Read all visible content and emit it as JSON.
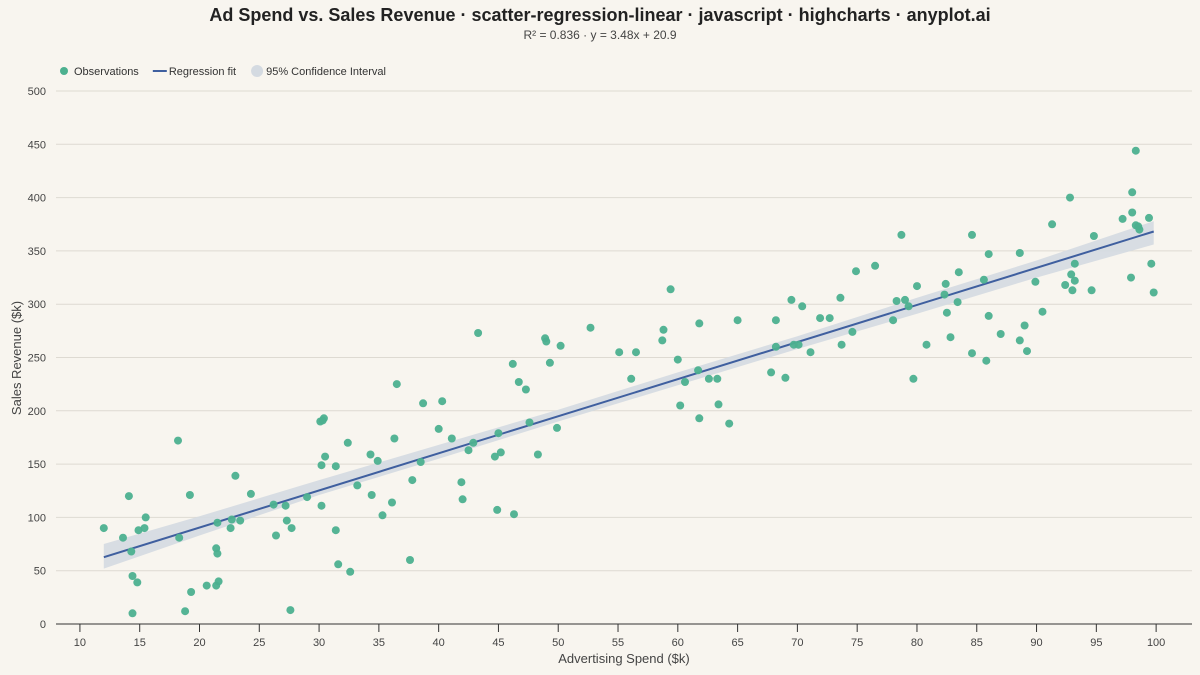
{
  "chart_data": {
    "type": "scatter",
    "title": "Ad Spend vs. Sales Revenue · scatter-regression-linear · javascript · highcharts · anyplot.ai",
    "subtitle": "R² = 0.836 · y = 3.48x + 20.9",
    "xlabel": "Advertising Spend ($k)",
    "ylabel": "Sales Revenue ($k)",
    "xlim": [
      8,
      103
    ],
    "ylim": [
      0,
      500
    ],
    "x_ticks": [
      10,
      15,
      20,
      25,
      30,
      35,
      40,
      45,
      50,
      55,
      60,
      65,
      70,
      75,
      80,
      85,
      90,
      95,
      100
    ],
    "y_ticks": [
      0,
      50,
      100,
      150,
      200,
      250,
      300,
      350,
      400,
      450,
      500
    ],
    "grid": "horizontal",
    "legend_position": "top-left",
    "colors": {
      "points": "#4cb08f",
      "line": "#3f5f9f",
      "band": "#d4dae1",
      "grid": "#dedad2",
      "axis": "#333333",
      "text": "#222222",
      "muted": "#444444"
    },
    "legend": [
      {
        "name": "Observations",
        "symbol": "circle"
      },
      {
        "name": "Regression fit",
        "symbol": "line"
      },
      {
        "name": "95% Confidence Interval",
        "symbol": "band"
      }
    ],
    "regression": {
      "slope": 3.48,
      "intercept": 20.9,
      "x_range": [
        12,
        99.8
      ]
    },
    "confidence_band": [
      {
        "x": 12,
        "lo": 52,
        "hi": 75
      },
      {
        "x": 20,
        "lo": 83,
        "hi": 101
      },
      {
        "x": 30,
        "lo": 121,
        "hi": 135
      },
      {
        "x": 40,
        "lo": 155,
        "hi": 168
      },
      {
        "x": 50,
        "lo": 190,
        "hi": 201
      },
      {
        "x": 60,
        "lo": 224,
        "hi": 236
      },
      {
        "x": 70,
        "lo": 258,
        "hi": 270
      },
      {
        "x": 80,
        "lo": 291,
        "hi": 306
      },
      {
        "x": 90,
        "lo": 325,
        "hi": 341
      },
      {
        "x": 99.8,
        "lo": 356,
        "hi": 378
      }
    ],
    "series": [
      {
        "name": "Observations",
        "points": [
          [
            12,
            90
          ],
          [
            13.6,
            81
          ],
          [
            14.1,
            120
          ],
          [
            14.3,
            68
          ],
          [
            14.4,
            45
          ],
          [
            14.4,
            10
          ],
          [
            14.8,
            39
          ],
          [
            14.9,
            88
          ],
          [
            15.4,
            90
          ],
          [
            15.5,
            100
          ],
          [
            18.2,
            172
          ],
          [
            18.3,
            81
          ],
          [
            18.8,
            12
          ],
          [
            19.2,
            121
          ],
          [
            19.3,
            30
          ],
          [
            20.6,
            36
          ],
          [
            21.4,
            36
          ],
          [
            21.4,
            71
          ],
          [
            21.5,
            66
          ],
          [
            21.6,
            40
          ],
          [
            21.5,
            95
          ],
          [
            22.6,
            90
          ],
          [
            22.7,
            98
          ],
          [
            23.0,
            139
          ],
          [
            23.4,
            97
          ],
          [
            24.3,
            122
          ],
          [
            26.2,
            112
          ],
          [
            26.4,
            83
          ],
          [
            27.2,
            111
          ],
          [
            27.3,
            97
          ],
          [
            27.6,
            13
          ],
          [
            27.7,
            90
          ],
          [
            29.0,
            119
          ],
          [
            30.1,
            190
          ],
          [
            30.4,
            193
          ],
          [
            30.3,
            191
          ],
          [
            30.2,
            149
          ],
          [
            30.2,
            111
          ],
          [
            30.5,
            157
          ],
          [
            31.4,
            148
          ],
          [
            31.4,
            88
          ],
          [
            31.6,
            56
          ],
          [
            32.4,
            170
          ],
          [
            32.6,
            49
          ],
          [
            33.2,
            130
          ],
          [
            34.3,
            159
          ],
          [
            34.4,
            121
          ],
          [
            34.9,
            153
          ],
          [
            35.3,
            102
          ],
          [
            36.1,
            114
          ],
          [
            36.3,
            174
          ],
          [
            36.5,
            225
          ],
          [
            37.6,
            60
          ],
          [
            37.8,
            135
          ],
          [
            38.5,
            152
          ],
          [
            38.7,
            207
          ],
          [
            40.0,
            183
          ],
          [
            40.3,
            209
          ],
          [
            41.1,
            174
          ],
          [
            41.9,
            133
          ],
          [
            42.0,
            117
          ],
          [
            42.5,
            163
          ],
          [
            42.9,
            170
          ],
          [
            43.3,
            273
          ],
          [
            44.7,
            157
          ],
          [
            44.9,
            107
          ],
          [
            45.0,
            179
          ],
          [
            45.2,
            161
          ],
          [
            46.2,
            244
          ],
          [
            46.3,
            103
          ],
          [
            46.7,
            227
          ],
          [
            47.3,
            220
          ],
          [
            47.6,
            189
          ],
          [
            48.3,
            159
          ],
          [
            48.9,
            268
          ],
          [
            49.0,
            265
          ],
          [
            49.3,
            245
          ],
          [
            49.9,
            184
          ],
          [
            50.2,
            261
          ],
          [
            52.7,
            278
          ],
          [
            55.1,
            255
          ],
          [
            56.1,
            230
          ],
          [
            56.5,
            255
          ],
          [
            58.7,
            266
          ],
          [
            58.8,
            276
          ],
          [
            59.4,
            314
          ],
          [
            60.0,
            248
          ],
          [
            60.2,
            205
          ],
          [
            60.6,
            227
          ],
          [
            61.7,
            238
          ],
          [
            61.8,
            282
          ],
          [
            61.8,
            193
          ],
          [
            62.6,
            230
          ],
          [
            63.3,
            230
          ],
          [
            63.4,
            206
          ],
          [
            64.3,
            188
          ],
          [
            65.0,
            285
          ],
          [
            67.8,
            236
          ],
          [
            68.2,
            260
          ],
          [
            68.2,
            285
          ],
          [
            69.0,
            231
          ],
          [
            69.5,
            304
          ],
          [
            69.7,
            262
          ],
          [
            70.1,
            262
          ],
          [
            70.4,
            298
          ],
          [
            71.1,
            255
          ],
          [
            71.9,
            287
          ],
          [
            72.7,
            287
          ],
          [
            73.6,
            306
          ],
          [
            73.7,
            262
          ],
          [
            74.6,
            274
          ],
          [
            74.9,
            331
          ],
          [
            76.5,
            336
          ],
          [
            78.0,
            285
          ],
          [
            78.3,
            303
          ],
          [
            78.7,
            365
          ],
          [
            79.0,
            304
          ],
          [
            79.3,
            298
          ],
          [
            79.7,
            230
          ],
          [
            80.0,
            317
          ],
          [
            80.8,
            262
          ],
          [
            82.3,
            309
          ],
          [
            82.4,
            319
          ],
          [
            82.5,
            292
          ],
          [
            82.8,
            269
          ],
          [
            83.4,
            302
          ],
          [
            83.5,
            330
          ],
          [
            84.6,
            365
          ],
          [
            84.6,
            254
          ],
          [
            85.6,
            323
          ],
          [
            85.8,
            247
          ],
          [
            86.0,
            347
          ],
          [
            86.0,
            289
          ],
          [
            87.0,
            272
          ],
          [
            88.6,
            348
          ],
          [
            88.6,
            266
          ],
          [
            89.0,
            280
          ],
          [
            89.2,
            256
          ],
          [
            89.9,
            321
          ],
          [
            90.5,
            293
          ],
          [
            91.3,
            375
          ],
          [
            92.4,
            318
          ],
          [
            92.8,
            400
          ],
          [
            92.9,
            328
          ],
          [
            93.0,
            313
          ],
          [
            93.2,
            338
          ],
          [
            93.2,
            322
          ],
          [
            94.6,
            313
          ],
          [
            94.8,
            364
          ],
          [
            97.2,
            380
          ],
          [
            97.9,
            325
          ],
          [
            98.0,
            386
          ],
          [
            98.0,
            405
          ],
          [
            98.3,
            444
          ],
          [
            98.3,
            374
          ],
          [
            98.5,
            373
          ],
          [
            98.6,
            370
          ],
          [
            99.4,
            381
          ],
          [
            99.6,
            338
          ],
          [
            99.8,
            311
          ]
        ]
      }
    ]
  }
}
